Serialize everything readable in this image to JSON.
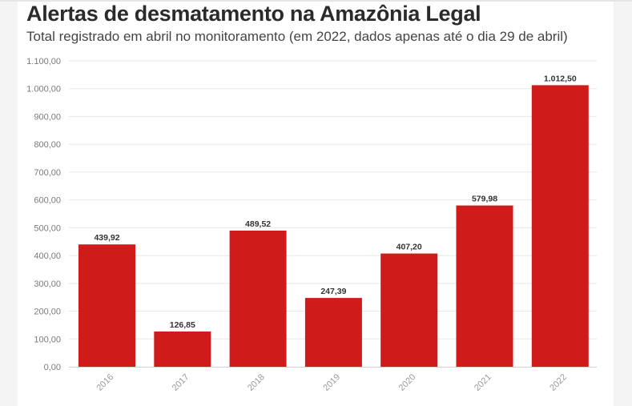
{
  "header": {
    "title": "Alertas de desmatamento na Amazônia Legal",
    "subtitle": "Total registrado em abril no monitoramento (em 2022, dados apenas até o dia 29 de abril)"
  },
  "colors": {
    "bar": "#d01b1b",
    "grid": "#e8e8e8",
    "axis": "#cfcfcf"
  },
  "chart_data": {
    "type": "bar",
    "title": "Alertas de desmatamento na Amazônia Legal",
    "subtitle": "Total registrado em abril no monitoramento (em 2022, dados apenas até o dia 29 de abril)",
    "categories": [
      "2016",
      "2017",
      "2018",
      "2019",
      "2020",
      "2021",
      "2022"
    ],
    "values": [
      439.92,
      126.85,
      489.52,
      247.39,
      407.2,
      579.98,
      1012.5
    ],
    "value_labels": [
      "439,92",
      "126,85",
      "489,52",
      "247,39",
      "407,20",
      "579,98",
      "1.012,50"
    ],
    "y_ticks": [
      0,
      100,
      200,
      300,
      400,
      500,
      600,
      700,
      800,
      900,
      1000,
      1100
    ],
    "y_tick_labels": [
      "0,00",
      "100,00",
      "200,00",
      "300,00",
      "400,00",
      "500,00",
      "600,00",
      "700,00",
      "800,00",
      "900,00",
      "1.000,00",
      "1.100,00"
    ],
    "xlabel": "",
    "ylabel": "",
    "ylim": [
      0,
      1100
    ],
    "grid": true,
    "legend": "none"
  }
}
